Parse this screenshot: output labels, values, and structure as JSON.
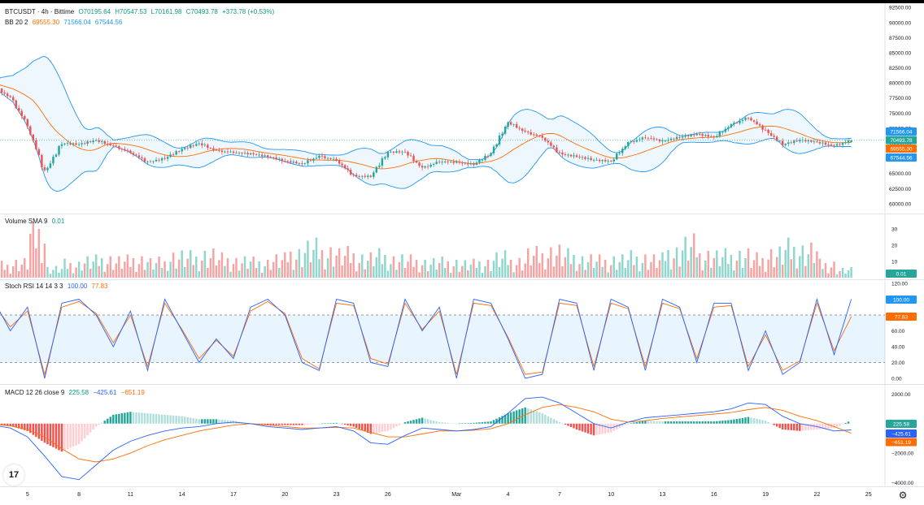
{
  "header": {
    "symbol": "BTCUSDT · 4h · Bittime",
    "open": "O70195.64",
    "high": "H70547.53",
    "low": "L70161.98",
    "close": "C70493.78",
    "change": "+373.78 (+0.53%)"
  },
  "legends": {
    "bb": {
      "name": "BB 20 2",
      "basis": "69555.30",
      "upper": "71566.04",
      "lower": "67544.56"
    },
    "volume": {
      "name": "Volume SMA 9",
      "value": "0.01"
    },
    "stoch": {
      "name": "Stoch RSI 14 14 3 3",
      "k": "100.00",
      "d": "77.83"
    },
    "macd": {
      "name": "MACD 12 26 close 9",
      "hist": "225.58",
      "macd": "−425.61",
      "signal": "−651.19"
    }
  },
  "price_labels": {
    "upper": "71566.04",
    "close": "70493.78",
    "basis": "69555.30",
    "lower": "67544.56"
  },
  "volume_labels": {
    "value": "0.01"
  },
  "stoch_labels": {
    "k": "100.00",
    "d": "77.83"
  },
  "macd_labels": {
    "hist": "225.58",
    "macd": "−425.61",
    "signal": "−651.19"
  },
  "logo_text": "17",
  "colors": {
    "up": "#26a69a",
    "down": "#ef5350",
    "basis": "#ff6d00",
    "band": "#2196f3",
    "bandFill": "rgba(33,150,243,0.08)",
    "k": "#2962ff",
    "d": "#ff6d00",
    "volUp": "#8fd6cc",
    "volDown": "#f5a3a3"
  },
  "chart_data": [
    {
      "type": "candlestick",
      "pane": "price",
      "yticks": [
        "92500.00",
        "90000.00",
        "87500.00",
        "85000.00",
        "82500.00",
        "80000.00",
        "77500.00",
        "75000.00",
        "72500.00",
        "70000.00",
        "67500.00",
        "65000.00",
        "62500.00",
        "60000.00"
      ],
      "ylim": [
        58500,
        93200
      ],
      "xticks": [
        "5",
        "8",
        "11",
        "14",
        "17",
        "20",
        "23",
        "26",
        "Mar",
        "4",
        "7",
        "10",
        "13",
        "16",
        "19",
        "22",
        "25"
      ],
      "x_range": [
        "Feb 2 2024",
        "Mar 25 2024"
      ],
      "closes_by_day": [
        [
          "Feb 3",
          79500
        ],
        [
          "Feb 4",
          77500
        ],
        [
          "Feb 5",
          73000
        ],
        [
          "Feb 6",
          65000
        ],
        [
          "Feb 7",
          70000
        ],
        [
          "Feb 8",
          69800
        ],
        [
          "Feb 9",
          70500
        ],
        [
          "Feb 10",
          69500
        ],
        [
          "Feb 11",
          68500
        ],
        [
          "Feb 12",
          66800
        ],
        [
          "Feb 13",
          67500
        ],
        [
          "Feb 14",
          69000
        ],
        [
          "Feb 15",
          70000
        ],
        [
          "Feb 16",
          68700
        ],
        [
          "Feb 17",
          68500
        ],
        [
          "Feb 18",
          68200
        ],
        [
          "Feb 19",
          67800
        ],
        [
          "Feb 20",
          67000
        ],
        [
          "Feb 21",
          66600
        ],
        [
          "Feb 22",
          67800
        ],
        [
          "Feb 23",
          67200
        ],
        [
          "Feb 24",
          64500
        ],
        [
          "Feb 25",
          64500
        ],
        [
          "Feb 26",
          68500
        ],
        [
          "Feb 27",
          68600
        ],
        [
          "Feb 28",
          65800
        ],
        [
          "Feb 29",
          67000
        ],
        [
          "Mar 1",
          66800
        ],
        [
          "Mar 2",
          66500
        ],
        [
          "Mar 3",
          68300
        ],
        [
          "Mar 4",
          73500
        ],
        [
          "Mar 5",
          71800
        ],
        [
          "Mar 6",
          71000
        ],
        [
          "Mar 7",
          68200
        ],
        [
          "Mar 8",
          67800
        ],
        [
          "Mar 9",
          67200
        ],
        [
          "Mar 10",
          67000
        ],
        [
          "Mar 11",
          70000
        ],
        [
          "Mar 12",
          71000
        ],
        [
          "Mar 13",
          70300
        ],
        [
          "Mar 14",
          71000
        ],
        [
          "Mar 15",
          71500
        ],
        [
          "Mar 16",
          71000
        ],
        [
          "Mar 17",
          73000
        ],
        [
          "Mar 18",
          74300
        ],
        [
          "Mar 19",
          72000
        ],
        [
          "Mar 20",
          69800
        ],
        [
          "Mar 21",
          70500
        ],
        [
          "Mar 22",
          70200
        ],
        [
          "Mar 23",
          69500
        ],
        [
          "Mar 24",
          70493.78
        ]
      ],
      "bollinger": {
        "period": 20,
        "mult": 2,
        "upper_last": 71566.04,
        "basis_last": 69555.3,
        "lower_last": 67544.56
      }
    },
    {
      "type": "bar",
      "pane": "volume",
      "yticks": [
        "30",
        "20",
        "10"
      ],
      "ylim": [
        0,
        35
      ],
      "values_by_day": [
        [
          "Feb 3",
          7
        ],
        [
          "Feb 4",
          8
        ],
        [
          "Feb 5",
          10
        ],
        [
          "Feb 6",
          30
        ],
        [
          "Feb 7",
          6
        ],
        [
          "Feb 8",
          9
        ],
        [
          "Feb 9",
          11
        ],
        [
          "Feb 10",
          12
        ],
        [
          "Feb 11",
          11
        ],
        [
          "Feb 12",
          12
        ],
        [
          "Feb 13",
          10
        ],
        [
          "Feb 14",
          14
        ],
        [
          "Feb 15",
          13
        ],
        [
          "Feb 16",
          15
        ],
        [
          "Feb 17",
          12
        ],
        [
          "Feb 18",
          11
        ],
        [
          "Feb 19",
          10
        ],
        [
          "Feb 20",
          12
        ],
        [
          "Feb 21",
          16
        ],
        [
          "Feb 22",
          19
        ],
        [
          "Feb 23",
          17
        ],
        [
          "Feb 24",
          15
        ],
        [
          "Feb 25",
          13
        ],
        [
          "Feb 26",
          14
        ],
        [
          "Feb 27",
          12
        ],
        [
          "Feb 28",
          11
        ],
        [
          "Feb 29",
          10
        ],
        [
          "Mar 1",
          10
        ],
        [
          "Mar 2",
          9
        ],
        [
          "Mar 3",
          10
        ],
        [
          "Mar 4",
          13
        ],
        [
          "Mar 5",
          11
        ],
        [
          "Mar 6",
          15
        ],
        [
          "Mar 7",
          17
        ],
        [
          "Mar 8",
          14
        ],
        [
          "Mar 9",
          12
        ],
        [
          "Mar 10",
          11
        ],
        [
          "Mar 11",
          12
        ],
        [
          "Mar 12",
          13
        ],
        [
          "Mar 13",
          12
        ],
        [
          "Mar 14",
          17
        ],
        [
          "Mar 15",
          21
        ],
        [
          "Mar 16",
          15
        ],
        [
          "Mar 17",
          14
        ],
        [
          "Mar 18",
          15
        ],
        [
          "Mar 19",
          12
        ],
        [
          "Mar 20",
          16
        ],
        [
          "Mar 21",
          19
        ],
        [
          "Mar 22",
          18
        ],
        [
          "Mar 23",
          9
        ],
        [
          "Mar 24",
          5
        ]
      ]
    },
    {
      "type": "line",
      "pane": "stoch_rsi",
      "yticks": [
        "120.00",
        "80.00",
        "60.00",
        "40.00",
        "20.00",
        "0.00"
      ],
      "ylim": [
        0,
        120
      ],
      "bands": [
        80,
        20
      ],
      "series": [
        {
          "name": "K",
          "values": [
            100,
            60,
            90,
            0,
            95,
            100,
            80,
            40,
            85,
            10,
            100,
            60,
            20,
            50,
            25,
            90,
            100,
            80,
            20,
            10,
            100,
            95,
            20,
            15,
            100,
            60,
            90,
            0,
            100,
            95,
            50,
            0,
            5,
            100,
            95,
            10,
            100,
            90,
            10,
            100,
            90,
            20,
            95,
            95,
            10,
            60,
            5,
            20,
            100,
            30,
            100
          ]
        },
        {
          "name": "D",
          "values": [
            95,
            65,
            85,
            5,
            90,
            97,
            82,
            45,
            80,
            15,
            95,
            62,
            25,
            48,
            28,
            85,
            97,
            82,
            25,
            12,
            95,
            92,
            25,
            18,
            95,
            62,
            85,
            5,
            95,
            92,
            52,
            5,
            8,
            95,
            92,
            15,
            95,
            88,
            15,
            95,
            88,
            25,
            90,
            92,
            15,
            55,
            10,
            22,
            95,
            35,
            77.83
          ]
        }
      ]
    },
    {
      "type": "line",
      "pane": "macd",
      "yticks": [
        "2000.00",
        "0.00",
        "−2000.00",
        "−4000.00"
      ],
      "ylim": [
        -4200,
        2300
      ],
      "series": [
        {
          "name": "MACD",
          "values": [
            -100,
            -300,
            -900,
            -2200,
            -3600,
            -3800,
            -2800,
            -1800,
            -1200,
            -800,
            -500,
            -300,
            -200,
            0,
            100,
            0,
            -200,
            -300,
            -400,
            -300,
            -200,
            -500,
            -1300,
            -1400,
            -800,
            -300,
            -400,
            -500,
            -400,
            -200,
            700,
            1700,
            1800,
            1400,
            700,
            0,
            -300,
            100,
            400,
            500,
            600,
            700,
            800,
            1000,
            1400,
            1300,
            500,
            0,
            -200,
            -500,
            -425.61
          ]
        },
        {
          "name": "Signal",
          "values": [
            -50,
            -150,
            -400,
            -900,
            -1700,
            -2400,
            -2600,
            -2400,
            -2000,
            -1500,
            -1100,
            -800,
            -500,
            -300,
            -100,
            0,
            -100,
            -200,
            -300,
            -300,
            -250,
            -300,
            -600,
            -900,
            -900,
            -700,
            -500,
            -500,
            -450,
            -350,
            0,
            600,
            1100,
            1300,
            1100,
            800,
            300,
            100,
            200,
            350,
            450,
            550,
            650,
            750,
            950,
            1100,
            900,
            500,
            200,
            -200,
            -651.19
          ]
        },
        {
          "name": "Histogram",
          "values": [
            -50,
            -150,
            -500,
            -1300,
            -1900,
            -1400,
            -200,
            600,
            800,
            700,
            600,
            500,
            300,
            300,
            200,
            0,
            -100,
            -100,
            -100,
            0,
            50,
            -200,
            -700,
            -500,
            100,
            400,
            100,
            0,
            50,
            150,
            700,
            1100,
            700,
            100,
            -400,
            -800,
            -600,
            0,
            200,
            150,
            150,
            150,
            150,
            250,
            450,
            200,
            -400,
            -500,
            -400,
            -300,
            225.58
          ]
        }
      ]
    }
  ]
}
